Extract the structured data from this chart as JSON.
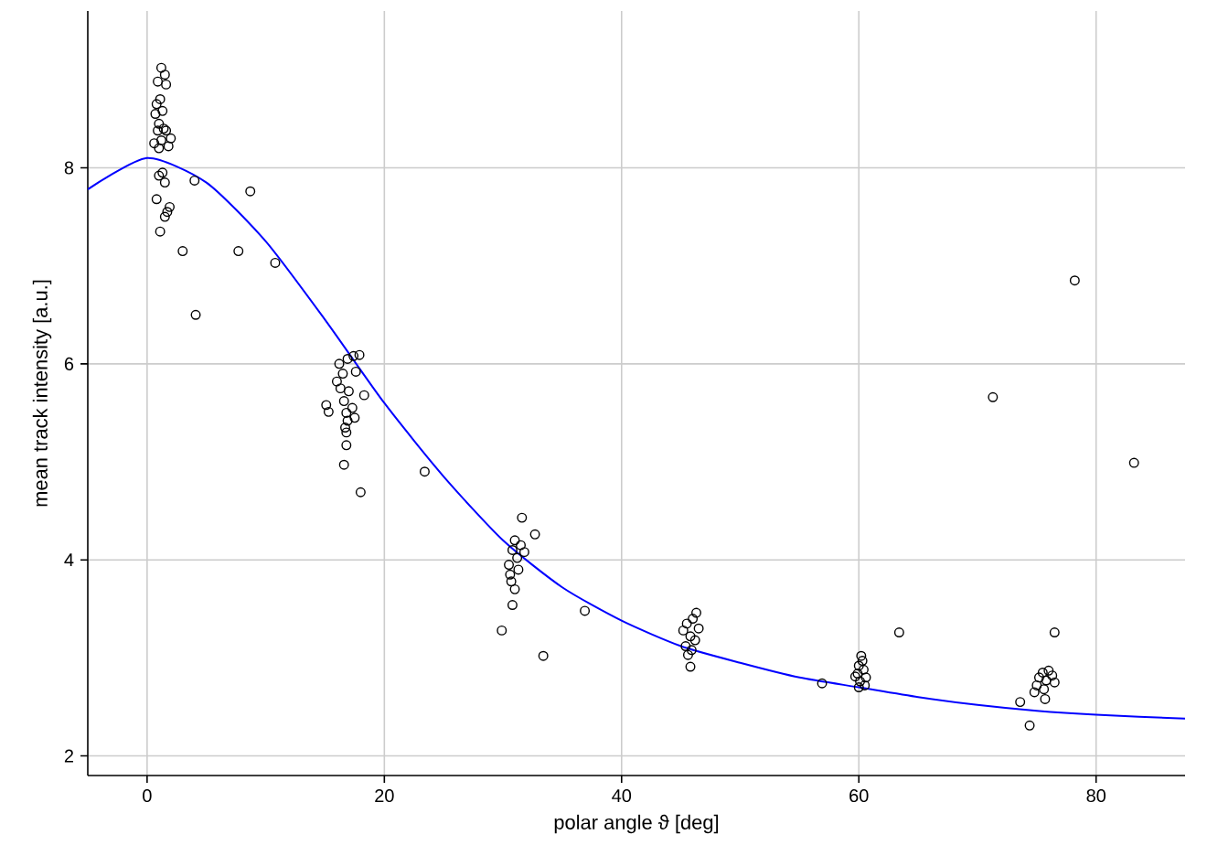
{
  "chart_data": {
    "type": "scatter",
    "xlabel": "polar angle ϑ [deg]",
    "ylabel": "mean track intensity [a.u.]",
    "xlim": [
      -5,
      87.5
    ],
    "ylim": [
      1.8,
      9.6
    ],
    "xticks": [
      0,
      20,
      40,
      60,
      80
    ],
    "yticks": [
      2,
      4,
      6,
      8
    ],
    "grid": true,
    "series": [
      {
        "color": "#000000",
        "marker": "circle",
        "x": [
          1.2,
          1.5,
          0.9,
          1.6,
          1.1,
          0.8,
          1.3,
          0.7,
          1.0,
          1.4,
          0.9,
          1.6,
          2.0,
          1.2,
          0.6,
          1.8,
          1.0,
          1.3,
          1.0,
          1.5,
          0.8,
          1.9,
          1.7,
          1.5,
          1.1,
          4.0,
          8.7,
          7.7,
          10.8,
          3.0,
          4.1,
          15.1,
          15.3,
          16.2,
          16.9,
          17.4,
          17.9,
          16.0,
          16.5,
          17.6,
          16.3,
          17.0,
          18.3,
          16.6,
          17.3,
          16.8,
          16.9,
          17.5,
          16.7,
          16.8,
          16.8,
          16.6,
          18.0,
          23.4,
          31.6,
          32.7,
          31.0,
          31.5,
          30.8,
          31.8,
          31.2,
          30.5,
          31.3,
          30.6,
          30.7,
          31.0,
          30.8,
          29.9,
          33.4,
          36.9,
          46.3,
          46.0,
          45.5,
          46.5,
          45.2,
          45.8,
          46.2,
          45.4,
          45.9,
          45.6,
          45.8,
          60.2,
          60.3,
          60.0,
          60.4,
          59.9,
          60.6,
          60.1,
          60.5,
          60.0,
          56.9,
          59.7,
          63.4,
          78.2,
          71.3,
          83.2,
          76.5,
          73.6,
          74.4,
          75.5,
          76.0,
          76.3,
          75.2,
          75.8,
          76.5,
          75.0,
          75.6,
          74.8,
          75.7
        ],
        "values": [
          9.02,
          8.95,
          8.88,
          8.85,
          8.7,
          8.65,
          8.58,
          8.55,
          8.45,
          8.4,
          8.38,
          8.38,
          8.3,
          8.28,
          8.25,
          8.22,
          8.2,
          7.95,
          7.92,
          7.85,
          7.68,
          7.6,
          7.55,
          7.5,
          7.35,
          7.87,
          7.76,
          7.15,
          7.03,
          7.15,
          6.5,
          5.58,
          5.51,
          6.0,
          6.05,
          6.08,
          6.09,
          5.82,
          5.9,
          5.92,
          5.75,
          5.72,
          5.68,
          5.62,
          5.55,
          5.5,
          5.42,
          5.45,
          5.35,
          5.3,
          5.17,
          4.97,
          4.69,
          4.9,
          4.43,
          4.26,
          4.2,
          4.15,
          4.1,
          4.08,
          4.02,
          3.95,
          3.9,
          3.85,
          3.78,
          3.7,
          3.54,
          3.28,
          3.02,
          3.48,
          3.46,
          3.4,
          3.35,
          3.3,
          3.28,
          3.22,
          3.18,
          3.12,
          3.08,
          3.03,
          2.91,
          3.02,
          2.97,
          2.92,
          2.88,
          2.84,
          2.8,
          2.76,
          2.72,
          2.7,
          2.74,
          2.81,
          3.26,
          6.85,
          5.66,
          4.99,
          3.26,
          2.55,
          2.31,
          2.85,
          2.87,
          2.82,
          2.8,
          2.77,
          2.75,
          2.72,
          2.68,
          2.65,
          2.58
        ]
      },
      {
        "type": "line",
        "color": "#0000ff",
        "marker": "none",
        "line_style": "solid",
        "x": [
          -5,
          0,
          5,
          10,
          15,
          20,
          25,
          30,
          35,
          40,
          45,
          50,
          55,
          60,
          65,
          70,
          75,
          80,
          87.5
        ],
        "values": [
          7.78,
          8.1,
          7.85,
          7.25,
          6.45,
          5.6,
          4.85,
          4.2,
          3.72,
          3.38,
          3.12,
          2.95,
          2.8,
          2.7,
          2.6,
          2.52,
          2.46,
          2.42,
          2.38
        ]
      }
    ]
  }
}
